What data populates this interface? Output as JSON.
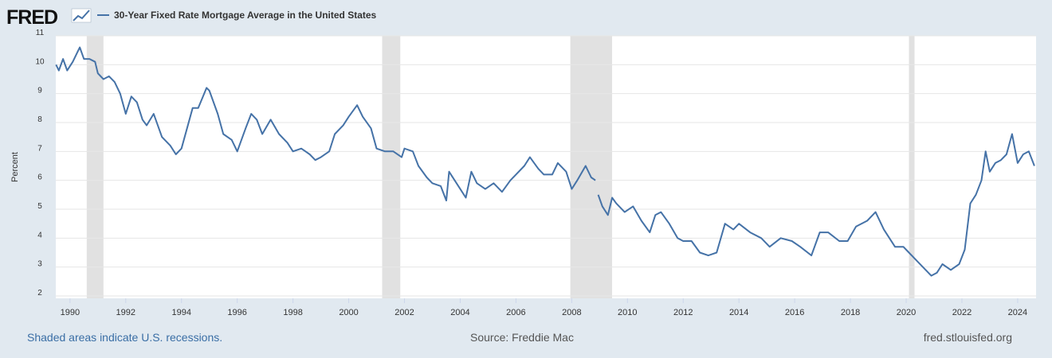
{
  "logo": "FRED",
  "chart_data": {
    "type": "line",
    "title": "30-Year Fixed Rate Mortgage Average in the United States",
    "ylabel": "Percent",
    "x": [
      1989.5,
      1989.6,
      1989.75,
      1989.9,
      1990.1,
      1990.3,
      1990.35,
      1990.5,
      1990.7,
      1990.9,
      1991.0,
      1991.2,
      1991.4,
      1991.6,
      1991.8,
      1992.0,
      1992.2,
      1992.4,
      1992.6,
      1992.75,
      1993.0,
      1993.3,
      1993.6,
      1993.8,
      1994.0,
      1994.2,
      1994.4,
      1994.6,
      1994.9,
      1995.0,
      1995.3,
      1995.5,
      1995.8,
      1996.0,
      1996.3,
      1996.5,
      1996.7,
      1996.9,
      1997.2,
      1997.5,
      1997.8,
      1998.0,
      1998.3,
      1998.6,
      1998.8,
      1999.0,
      1999.3,
      1999.5,
      1999.8,
      2000.0,
      2000.3,
      2000.5,
      2000.8,
      2001.0,
      2001.3,
      2001.6,
      2001.9,
      2002.0,
      2002.3,
      2002.5,
      2002.8,
      2003.0,
      2003.3,
      2003.5,
      2003.6,
      2003.8,
      2004.0,
      2004.2,
      2004.4,
      2004.6,
      2004.9,
      2005.2,
      2005.5,
      2005.8,
      2006.0,
      2006.3,
      2006.5,
      2006.8,
      2007.0,
      2007.3,
      2007.5,
      2007.8,
      2008.0,
      2008.2,
      2008.5,
      2008.7,
      2008.85,
      2008.9,
      2008.95,
      2009.1,
      2009.3,
      2009.45,
      2009.6,
      2009.9,
      2010.2,
      2010.5,
      2010.8,
      2011.0,
      2011.2,
      2011.5,
      2011.8,
      2012.0,
      2012.3,
      2012.6,
      2012.9,
      2013.2,
      2013.5,
      2013.8,
      2014.0,
      2014.4,
      2014.8,
      2015.1,
      2015.5,
      2015.9,
      2016.2,
      2016.6,
      2016.9,
      2017.2,
      2017.6,
      2017.9,
      2018.2,
      2018.6,
      2018.9,
      2019.2,
      2019.6,
      2019.9,
      2020.1,
      2020.3,
      2020.6,
      2020.9,
      2021.1,
      2021.3,
      2021.6,
      2021.9,
      2022.1,
      2022.3,
      2022.5,
      2022.7,
      2022.85,
      2023.0,
      2023.2,
      2023.4,
      2023.6,
      2023.8,
      2024.0,
      2024.2,
      2024.4,
      2024.6
    ],
    "series": [
      {
        "name": "30-Year Fixed Rate Mortgage Average in the United States",
        "color": "#4572a7",
        "values": [
          10.0,
          9.8,
          10.2,
          9.8,
          10.1,
          10.5,
          10.6,
          10.2,
          10.2,
          10.1,
          9.7,
          9.5,
          9.6,
          9.4,
          9.0,
          8.3,
          8.9,
          8.7,
          8.1,
          7.9,
          8.3,
          7.5,
          7.2,
          6.9,
          7.1,
          7.8,
          8.5,
          8.5,
          9.2,
          9.1,
          8.3,
          7.6,
          7.4,
          7.0,
          7.8,
          8.3,
          8.1,
          7.6,
          8.1,
          7.6,
          7.3,
          7.0,
          7.1,
          6.9,
          6.7,
          6.8,
          7.0,
          7.6,
          7.9,
          8.2,
          8.6,
          8.2,
          7.8,
          7.1,
          7.0,
          7.0,
          6.8,
          7.1,
          7.0,
          6.5,
          6.1,
          5.9,
          5.8,
          5.3,
          6.3,
          6.0,
          5.7,
          5.4,
          6.3,
          5.9,
          5.7,
          5.9,
          5.6,
          6.0,
          6.2,
          6.5,
          6.8,
          6.4,
          6.2,
          6.2,
          6.6,
          6.3,
          5.7,
          6.0,
          6.5,
          6.1,
          6.0,
          null,
          5.5,
          5.1,
          4.8,
          5.4,
          5.2,
          4.9,
          5.1,
          4.6,
          4.2,
          4.8,
          4.9,
          4.5,
          4.0,
          3.9,
          3.9,
          3.5,
          3.4,
          3.5,
          4.5,
          4.3,
          4.5,
          4.2,
          4.0,
          3.7,
          4.0,
          3.9,
          3.7,
          3.4,
          4.2,
          4.2,
          3.9,
          3.9,
          4.4,
          4.6,
          4.9,
          4.3,
          3.7,
          3.7,
          3.5,
          3.3,
          3.0,
          2.7,
          2.8,
          3.1,
          2.9,
          3.1,
          3.6,
          5.2,
          5.5,
          6.0,
          7.0,
          6.3,
          6.6,
          6.7,
          6.9,
          7.6,
          6.6,
          6.9,
          7.0,
          6.5
        ]
      }
    ],
    "recessions": [
      {
        "start": 1990.6,
        "end": 1991.2
      },
      {
        "start": 2001.2,
        "end": 2001.85
      },
      {
        "start": 2007.95,
        "end": 2009.45
      },
      {
        "start": 2020.1,
        "end": 2020.3
      }
    ],
    "recession_color": "#e1e1e1",
    "xlim": [
      1989.49,
      2024.66
    ],
    "xticks": [
      1990,
      1992,
      1994,
      1996,
      1998,
      2000,
      2002,
      2004,
      2006,
      2008,
      2010,
      2012,
      2014,
      2016,
      2018,
      2020,
      2022,
      2024
    ],
    "ylim": [
      2,
      11
    ],
    "yticks": [
      2,
      3,
      4,
      5,
      6,
      7,
      8,
      9,
      10,
      11
    ],
    "grid": true
  },
  "footer": {
    "note": "Shaded areas indicate U.S. recessions.",
    "source": "Source: Freddie Mac",
    "site": "fred.stlouisfed.org"
  }
}
